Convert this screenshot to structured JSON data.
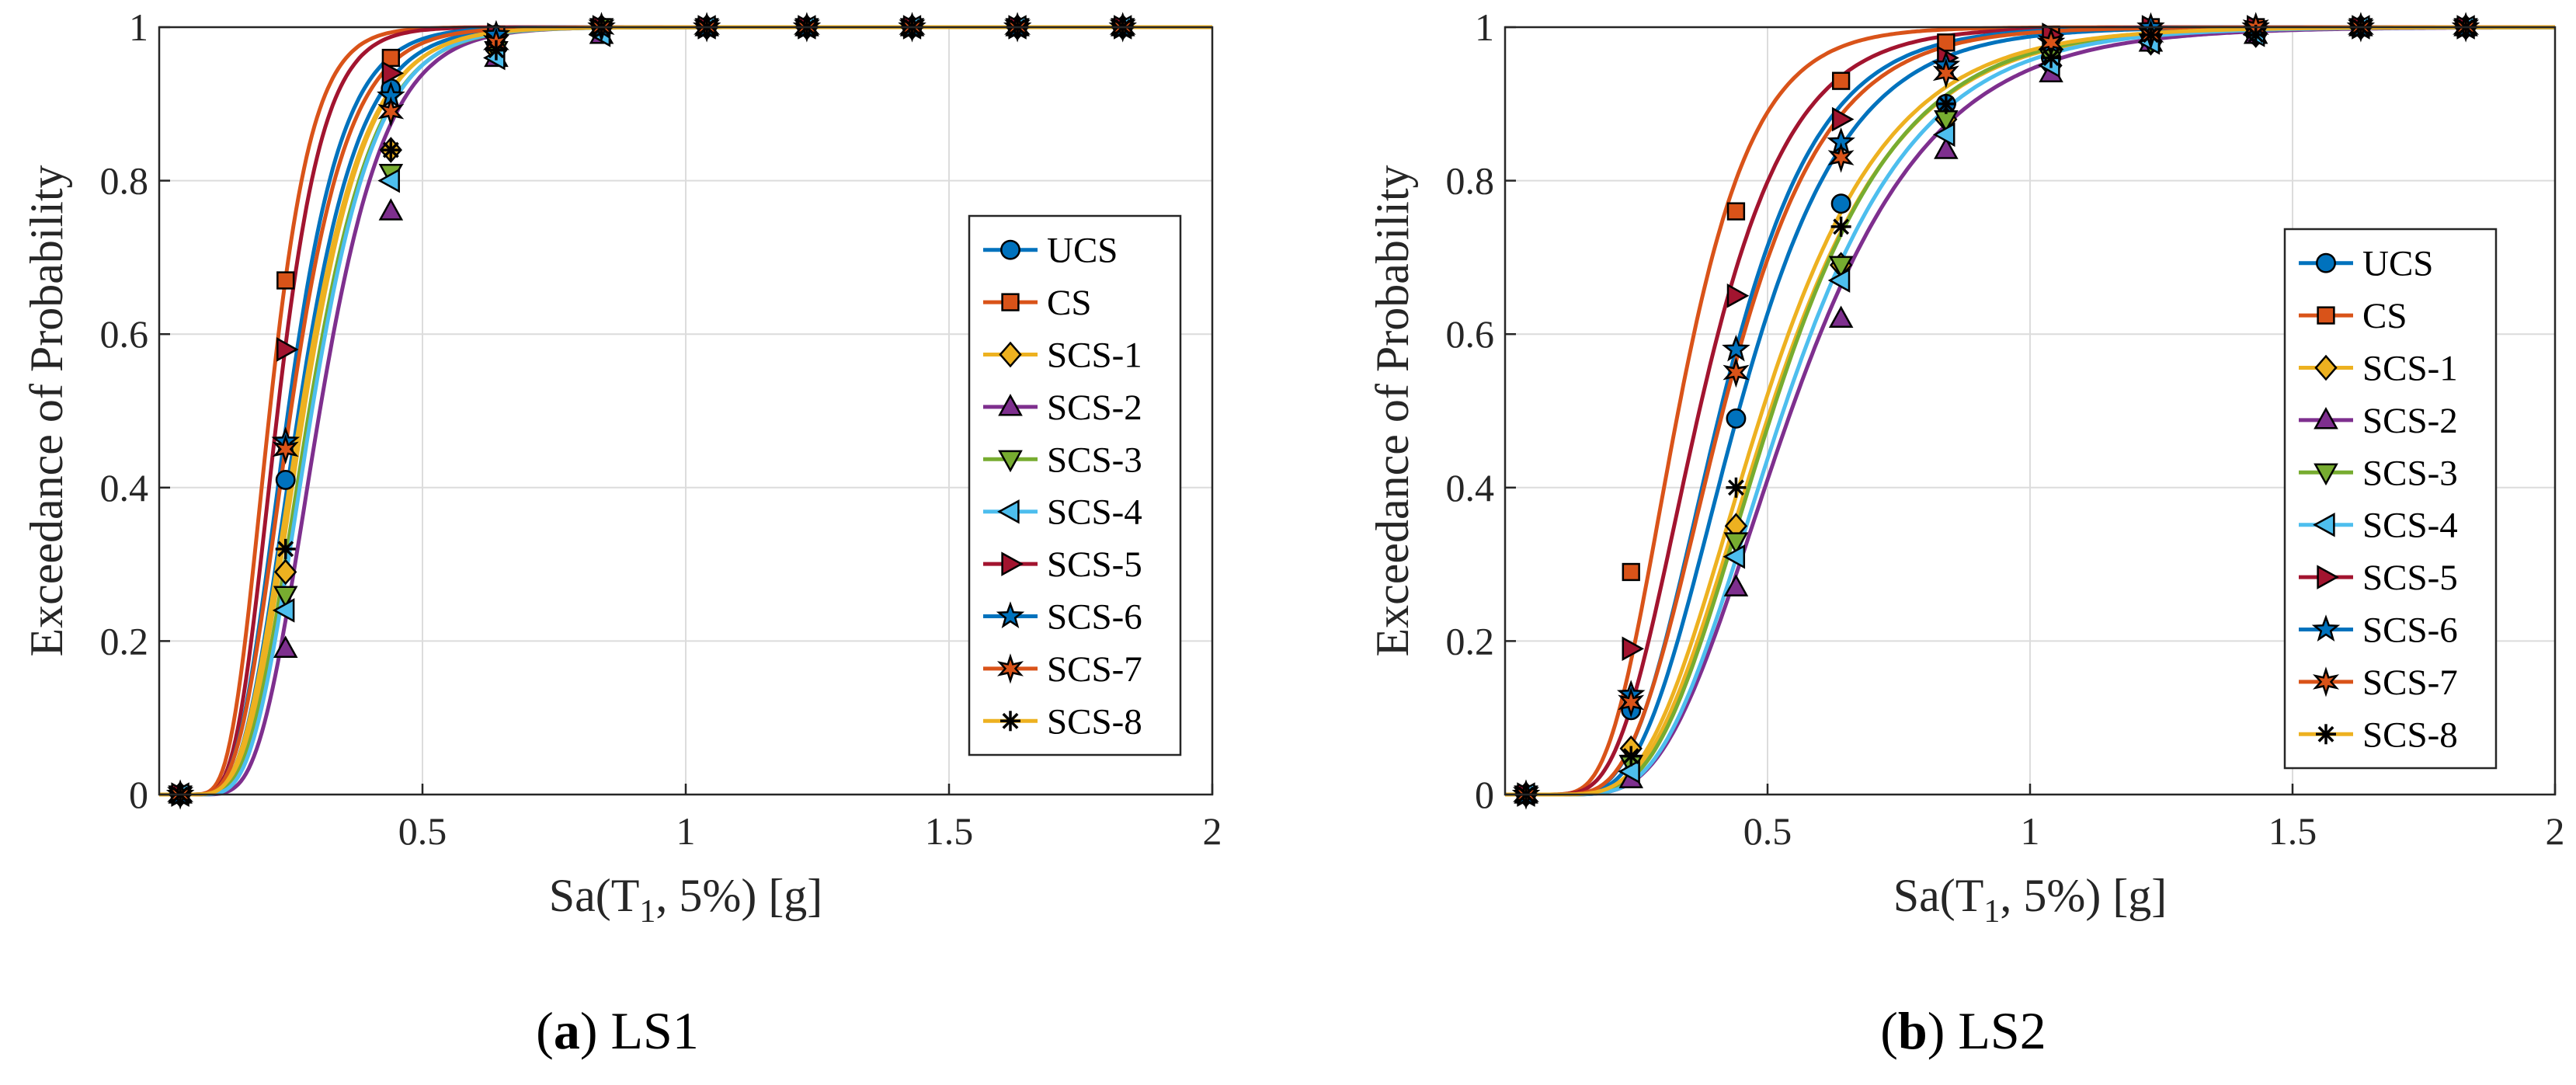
{
  "figure_caption_prefix": "(",
  "chart_data": [
    {
      "type": "line",
      "panel_label": "a",
      "caption": "LS1",
      "xlabel_main": "Sa(T",
      "xlabel_sub": "1",
      "xlabel_tail": ", 5%) [g]",
      "ylabel": "Exceedance of Probability",
      "xlim": [
        0,
        2
      ],
      "ylim": [
        0,
        1
      ],
      "xticks": [
        0.5,
        1,
        1.5,
        2
      ],
      "xtick_labels": [
        "0.5",
        "1",
        "1.5",
        "2"
      ],
      "yticks": [
        0,
        0.2,
        0.4,
        0.6,
        0.8,
        1
      ],
      "ytick_labels": [
        "0",
        "0.2",
        "0.4",
        "0.6",
        "0.8",
        "1"
      ],
      "grid": true,
      "legend_position": "right-middle",
      "marker_x": [
        0.04,
        0.24,
        0.44,
        0.64,
        0.84,
        1.04,
        1.23,
        1.43,
        1.63,
        1.83
      ],
      "series": [
        {
          "name": "UCS",
          "color": "#0072BD",
          "marker": "circle",
          "median": 0.265,
          "beta": 0.34,
          "values": [
            0,
            0.41,
            0.92,
            0.99,
            1,
            1,
            1,
            1,
            1,
            1
          ]
        },
        {
          "name": "CS",
          "color": "#D95319",
          "marker": "square",
          "median": 0.21,
          "beta": 0.3,
          "values": [
            0,
            0.67,
            0.96,
            0.99,
            1,
            1,
            1,
            1,
            1,
            1
          ]
        },
        {
          "name": "SCS-1",
          "color": "#EDB120",
          "marker": "diamond",
          "median": 0.275,
          "beta": 0.34,
          "values": [
            0,
            0.29,
            0.84,
            0.97,
            1,
            1,
            1,
            1,
            1,
            1
          ]
        },
        {
          "name": "SCS-2",
          "color": "#7E2F8E",
          "marker": "triangle-up",
          "median": 0.305,
          "beta": 0.32,
          "values": [
            0,
            0.19,
            0.76,
            0.96,
            0.99,
            1,
            1,
            1,
            1,
            1
          ]
        },
        {
          "name": "SCS-3",
          "color": "#77AC30",
          "marker": "triangle-down",
          "median": 0.285,
          "beta": 0.34,
          "values": [
            0,
            0.26,
            0.81,
            0.97,
            1,
            1,
            1,
            1,
            1,
            1
          ]
        },
        {
          "name": "SCS-4",
          "color": "#4DBEEE",
          "marker": "triangle-left",
          "median": 0.29,
          "beta": 0.33,
          "values": [
            0,
            0.24,
            0.8,
            0.96,
            0.99,
            1,
            1,
            1,
            1,
            1
          ]
        },
        {
          "name": "SCS-5",
          "color": "#A2142F",
          "marker": "triangle-right",
          "median": 0.225,
          "beta": 0.3,
          "values": [
            0,
            0.58,
            0.94,
            0.99,
            1,
            1,
            1,
            1,
            1,
            1
          ]
        },
        {
          "name": "SCS-6",
          "color": "#0072BD",
          "marker": "star5",
          "median": 0.245,
          "beta": 0.33,
          "values": [
            0,
            0.46,
            0.91,
            0.99,
            1,
            1,
            1,
            1,
            1,
            1
          ]
        },
        {
          "name": "SCS-7",
          "color": "#D95319",
          "marker": "star6",
          "median": 0.25,
          "beta": 0.34,
          "values": [
            0,
            0.45,
            0.89,
            0.98,
            1,
            1,
            1,
            1,
            1,
            1
          ]
        },
        {
          "name": "SCS-8",
          "color": "#EDB120",
          "marker": "asterisk",
          "median": 0.27,
          "beta": 0.35,
          "values": [
            0,
            0.32,
            0.84,
            0.97,
            1,
            1,
            1,
            1,
            1,
            1
          ]
        }
      ]
    },
    {
      "type": "line",
      "panel_label": "b",
      "caption": "LS2",
      "xlabel_main": "Sa(T",
      "xlabel_sub": "1",
      "xlabel_tail": ", 5%) [g]",
      "ylabel": "Exceedance of Probability",
      "xlim": [
        0,
        2
      ],
      "ylim": [
        0,
        1
      ],
      "xticks": [
        0.5,
        1,
        1.5,
        2
      ],
      "xtick_labels": [
        "0.5",
        "1",
        "1.5",
        "2"
      ],
      "yticks": [
        0,
        0.2,
        0.4,
        0.6,
        0.8,
        1
      ],
      "ytick_labels": [
        "0",
        "0.2",
        "0.4",
        "0.6",
        "0.8",
        "1"
      ],
      "grid": true,
      "legend_position": "right-middle",
      "marker_x": [
        0.04,
        0.24,
        0.44,
        0.64,
        0.84,
        1.04,
        1.23,
        1.43,
        1.63,
        1.83
      ],
      "series": [
        {
          "name": "UCS",
          "color": "#0072BD",
          "marker": "circle",
          "median": 0.445,
          "beta": 0.36,
          "values": [
            0,
            0.11,
            0.49,
            0.77,
            0.9,
            0.96,
            0.98,
            0.99,
            1,
            1
          ]
        },
        {
          "name": "CS",
          "color": "#D95319",
          "marker": "square",
          "median": 0.33,
          "beta": 0.34,
          "values": [
            0,
            0.29,
            0.76,
            0.93,
            0.98,
            0.99,
            1,
            1,
            1,
            1
          ]
        },
        {
          "name": "SCS-1",
          "color": "#EDB120",
          "marker": "diamond",
          "median": 0.505,
          "beta": 0.38,
          "values": [
            0,
            0.06,
            0.35,
            0.69,
            0.88,
            0.95,
            0.98,
            0.99,
            1,
            1
          ]
        },
        {
          "name": "SCS-2",
          "color": "#7E2F8E",
          "marker": "triangle-up",
          "median": 0.545,
          "beta": 0.38,
          "values": [
            0,
            0.02,
            0.27,
            0.62,
            0.84,
            0.94,
            0.98,
            0.99,
            1,
            1
          ]
        },
        {
          "name": "SCS-3",
          "color": "#77AC30",
          "marker": "triangle-down",
          "median": 0.51,
          "beta": 0.37,
          "values": [
            0,
            0.04,
            0.33,
            0.69,
            0.88,
            0.96,
            0.98,
            0.99,
            1,
            1
          ]
        },
        {
          "name": "SCS-4",
          "color": "#4DBEEE",
          "marker": "triangle-left",
          "median": 0.53,
          "beta": 0.37,
          "values": [
            0,
            0.03,
            0.31,
            0.67,
            0.86,
            0.95,
            0.98,
            0.99,
            1,
            1
          ]
        },
        {
          "name": "SCS-5",
          "color": "#A2142F",
          "marker": "triangle-right",
          "median": 0.37,
          "beta": 0.36,
          "values": [
            0,
            0.19,
            0.65,
            0.88,
            0.96,
            0.99,
            1,
            1,
            1,
            1
          ]
        },
        {
          "name": "SCS-6",
          "color": "#0072BD",
          "marker": "star5",
          "median": 0.41,
          "beta": 0.35,
          "values": [
            0,
            0.13,
            0.58,
            0.85,
            0.95,
            0.98,
            1,
            1,
            1,
            1
          ]
        },
        {
          "name": "SCS-7",
          "color": "#D95319",
          "marker": "star6",
          "median": 0.415,
          "beta": 0.36,
          "values": [
            0,
            0.12,
            0.55,
            0.83,
            0.94,
            0.98,
            0.99,
            1,
            1,
            1
          ]
        },
        {
          "name": "SCS-8",
          "color": "#EDB120",
          "marker": "asterisk",
          "median": 0.49,
          "beta": 0.38,
          "values": [
            0,
            0.05,
            0.4,
            0.74,
            0.9,
            0.96,
            0.99,
            0.99,
            1,
            1
          ]
        }
      ]
    }
  ]
}
